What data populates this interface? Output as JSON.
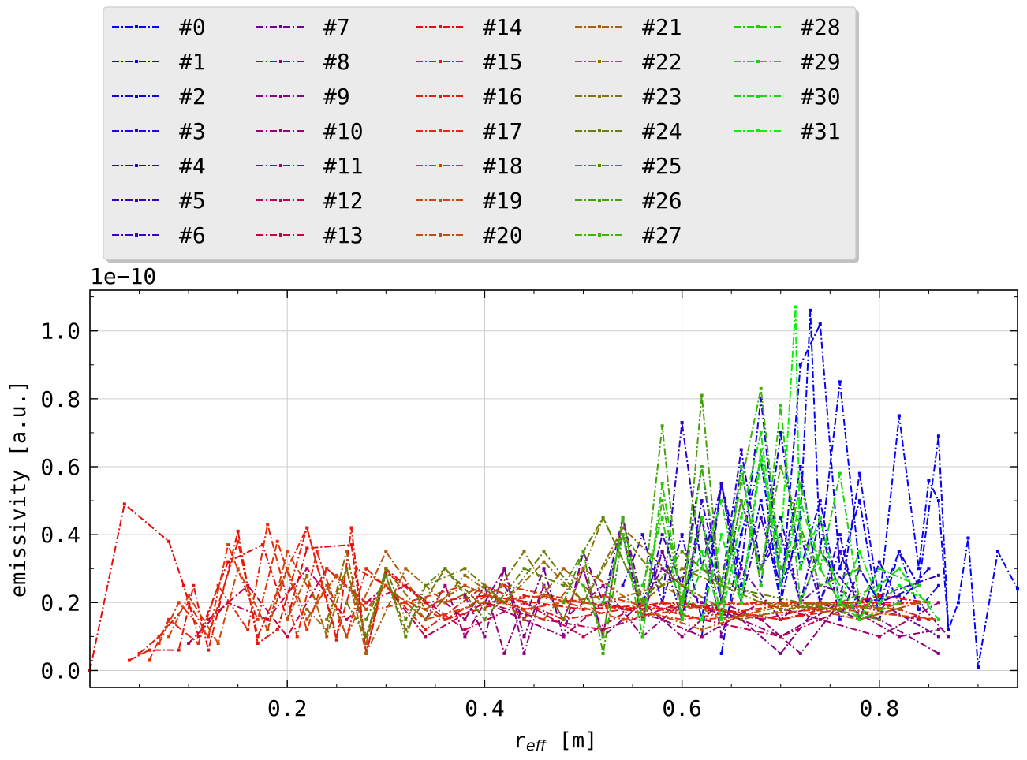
{
  "chart_data": {
    "type": "line",
    "xlabel_main": "r",
    "xlabel_sub": "eff",
    "xlabel_unit": " [m]",
    "ylabel": "emissivity [a.u.]",
    "y_offset_text": "1e−10",
    "y_scale_factor": 1e-10,
    "xlim": [
      0.0,
      0.94
    ],
    "ylim": [
      -0.05,
      1.12
    ],
    "x_ticks": [
      0.2,
      0.4,
      0.6,
      0.8
    ],
    "x_tick_labels": [
      "0.2",
      "0.4",
      "0.6",
      "0.8"
    ],
    "y_ticks": [
      0.0,
      0.2,
      0.4,
      0.6,
      0.8,
      1.0
    ],
    "y_tick_labels": [
      "0.0",
      "0.2",
      "0.4",
      "0.6",
      "0.8",
      "1.0"
    ],
    "grid": true,
    "legend_placement": "top, outside plot, 5 columns",
    "line_style": "dash-dot with small markers",
    "series": [
      {
        "name": "#0",
        "color": "#0000ff",
        "x": [
          0.64,
          0.66,
          0.68,
          0.7,
          0.72,
          0.73,
          0.74,
          0.76,
          0.78,
          0.8,
          0.82,
          0.84,
          0.85,
          0.86,
          0.87,
          0.88,
          0.89,
          0.9,
          0.92,
          0.94
        ],
        "y": [
          0.05,
          0.4,
          0.62,
          0.2,
          0.45,
          1.06,
          0.35,
          0.85,
          0.3,
          0.2,
          0.75,
          0.3,
          0.56,
          0.5,
          0.12,
          0.2,
          0.39,
          0.01,
          0.35,
          0.24
        ]
      },
      {
        "name": "#1",
        "color": "#0a00f5",
        "x": [
          0.62,
          0.64,
          0.66,
          0.68,
          0.7,
          0.72,
          0.74,
          0.76,
          0.78,
          0.8,
          0.82,
          0.84,
          0.86,
          0.87
        ],
        "y": [
          0.1,
          0.55,
          0.25,
          0.5,
          0.2,
          0.9,
          1.02,
          0.3,
          0.5,
          0.15,
          0.35,
          0.25,
          0.69,
          0.12
        ]
      },
      {
        "name": "#2",
        "color": "#1400eb",
        "x": [
          0.6,
          0.62,
          0.64,
          0.66,
          0.68,
          0.7,
          0.72,
          0.74,
          0.76,
          0.78,
          0.8,
          0.82,
          0.84,
          0.86
        ],
        "y": [
          0.15,
          0.45,
          0.2,
          0.6,
          0.25,
          0.7,
          0.3,
          0.5,
          0.2,
          0.58,
          0.2,
          0.35,
          0.18,
          0.25
        ]
      },
      {
        "name": "#3",
        "color": "#1e00e1",
        "x": [
          0.58,
          0.6,
          0.62,
          0.64,
          0.66,
          0.68,
          0.7,
          0.72,
          0.74,
          0.76,
          0.78,
          0.8,
          0.82,
          0.85
        ],
        "y": [
          0.2,
          0.4,
          0.15,
          0.55,
          0.3,
          0.8,
          0.25,
          0.6,
          0.2,
          0.4,
          0.15,
          0.32,
          0.2,
          0.3
        ]
      },
      {
        "name": "#4",
        "color": "#2800d7",
        "x": [
          0.56,
          0.58,
          0.6,
          0.62,
          0.64,
          0.66,
          0.68,
          0.7,
          0.72,
          0.74,
          0.76,
          0.78,
          0.8,
          0.84
        ],
        "y": [
          0.2,
          0.35,
          0.15,
          0.5,
          0.25,
          0.65,
          0.3,
          0.4,
          0.2,
          0.45,
          0.15,
          0.3,
          0.2,
          0.25
        ]
      },
      {
        "name": "#5",
        "color": "#3200cd",
        "x": [
          0.54,
          0.56,
          0.58,
          0.6,
          0.62,
          0.64,
          0.66,
          0.68,
          0.7,
          0.72,
          0.74,
          0.76,
          0.78,
          0.82
        ],
        "y": [
          0.25,
          0.4,
          0.2,
          0.73,
          0.3,
          0.55,
          0.2,
          0.45,
          0.25,
          0.4,
          0.2,
          0.35,
          0.2,
          0.22
        ]
      },
      {
        "name": "#6",
        "color": "#3c00c3",
        "x": [
          0.52,
          0.54,
          0.56,
          0.58,
          0.6,
          0.62,
          0.64,
          0.66,
          0.68,
          0.7,
          0.72,
          0.74,
          0.78,
          0.86
        ],
        "y": [
          0.2,
          0.45,
          0.15,
          0.4,
          0.25,
          0.6,
          0.2,
          0.5,
          0.3,
          0.45,
          0.2,
          0.35,
          0.2,
          0.28
        ]
      },
      {
        "name": "#7",
        "color": "#6e0096",
        "x": [
          0.42,
          0.44,
          0.46,
          0.48,
          0.5,
          0.52,
          0.54,
          0.56,
          0.58,
          0.6,
          0.62,
          0.64,
          0.66,
          0.7,
          0.74,
          0.8,
          0.86
        ],
        "y": [
          0.25,
          0.15,
          0.3,
          0.1,
          0.35,
          0.2,
          0.4,
          0.15,
          0.35,
          0.2,
          0.45,
          0.1,
          0.3,
          0.15,
          0.25,
          0.2,
          0.1
        ]
      },
      {
        "name": "#8",
        "color": "#82008c",
        "x": [
          0.4,
          0.42,
          0.44,
          0.46,
          0.48,
          0.5,
          0.52,
          0.54,
          0.56,
          0.58,
          0.62,
          0.66,
          0.7,
          0.74,
          0.78,
          0.84,
          0.87
        ],
        "y": [
          0.2,
          0.3,
          0.1,
          0.25,
          0.15,
          0.3,
          0.1,
          0.45,
          0.2,
          0.3,
          0.2,
          0.15,
          0.05,
          0.2,
          0.15,
          0.2,
          0.1
        ]
      },
      {
        "name": "#9",
        "color": "#8c0082",
        "x": [
          0.38,
          0.4,
          0.42,
          0.44,
          0.46,
          0.48,
          0.5,
          0.52,
          0.56,
          0.6,
          0.64,
          0.68,
          0.72,
          0.76,
          0.8,
          0.86
        ],
        "y": [
          0.22,
          0.1,
          0.3,
          0.05,
          0.25,
          0.15,
          0.3,
          0.1,
          0.2,
          0.1,
          0.2,
          0.15,
          0.05,
          0.2,
          0.15,
          0.05
        ]
      },
      {
        "name": "#10",
        "color": "#960078",
        "x": [
          0.36,
          0.38,
          0.4,
          0.42,
          0.44,
          0.48,
          0.52,
          0.56,
          0.6,
          0.66,
          0.7,
          0.76,
          0.82,
          0.86
        ],
        "y": [
          0.2,
          0.15,
          0.25,
          0.05,
          0.2,
          0.15,
          0.25,
          0.1,
          0.2,
          0.15,
          0.1,
          0.2,
          0.1,
          0.12
        ]
      },
      {
        "name": "#11",
        "color": "#a0006e",
        "x": [
          0.34,
          0.36,
          0.38,
          0.4,
          0.44,
          0.48,
          0.52,
          0.58,
          0.62,
          0.68,
          0.74,
          0.8,
          0.86
        ],
        "y": [
          0.15,
          0.25,
          0.1,
          0.2,
          0.15,
          0.1,
          0.2,
          0.15,
          0.1,
          0.2,
          0.15,
          0.1,
          0.2
        ]
      },
      {
        "name": "#12",
        "color": "#be0050",
        "x": [
          0.1,
          0.14,
          0.18,
          0.22,
          0.26,
          0.3,
          0.34,
          0.4,
          0.46,
          0.52,
          0.6,
          0.68,
          0.76,
          0.84
        ],
        "y": [
          0.08,
          0.2,
          0.15,
          0.3,
          0.15,
          0.25,
          0.1,
          0.2,
          0.15,
          0.12,
          0.2,
          0.15,
          0.2,
          0.15
        ]
      },
      {
        "name": "#13",
        "color": "#c80046",
        "x": [
          0.12,
          0.16,
          0.2,
          0.24,
          0.28,
          0.32,
          0.38,
          0.44,
          0.5,
          0.56,
          0.62,
          0.7,
          0.78,
          0.85
        ],
        "y": [
          0.15,
          0.25,
          0.1,
          0.3,
          0.2,
          0.25,
          0.12,
          0.2,
          0.1,
          0.2,
          0.15,
          0.1,
          0.2,
          0.2
        ]
      },
      {
        "name": "#14",
        "color": "#e60a0a",
        "x": [
          0.0,
          0.035,
          0.08,
          0.095,
          0.11,
          0.14,
          0.175,
          0.2,
          0.22,
          0.265,
          0.28,
          0.3,
          0.34,
          0.4,
          0.5,
          0.6,
          0.7,
          0.8,
          0.85
        ],
        "y": [
          0.0,
          0.49,
          0.38,
          0.25,
          0.1,
          0.32,
          0.37,
          0.15,
          0.36,
          0.37,
          0.05,
          0.29,
          0.2,
          0.22,
          0.18,
          0.2,
          0.15,
          0.22,
          0.2
        ]
      },
      {
        "name": "#15",
        "color": "#e6140a",
        "x": [
          0.04,
          0.06,
          0.09,
          0.105,
          0.12,
          0.15,
          0.17,
          0.19,
          0.22,
          0.25,
          0.265,
          0.28,
          0.3,
          0.36,
          0.44,
          0.56,
          0.68,
          0.8,
          0.85
        ],
        "y": [
          0.03,
          0.06,
          0.06,
          0.25,
          0.06,
          0.41,
          0.08,
          0.12,
          0.42,
          0.09,
          0.42,
          0.05,
          0.3,
          0.15,
          0.22,
          0.18,
          0.2,
          0.2,
          0.15
        ]
      },
      {
        "name": "#16",
        "color": "#e61e0a",
        "x": [
          0.05,
          0.07,
          0.1,
          0.12,
          0.15,
          0.17,
          0.2,
          0.22,
          0.25,
          0.27,
          0.3,
          0.34,
          0.4,
          0.48,
          0.58,
          0.7,
          0.8
        ],
        "y": [
          0.05,
          0.1,
          0.2,
          0.1,
          0.38,
          0.1,
          0.3,
          0.42,
          0.1,
          0.3,
          0.25,
          0.12,
          0.25,
          0.15,
          0.2,
          0.15,
          0.2
        ]
      },
      {
        "name": "#17",
        "color": "#e6280a",
        "x": [
          0.06,
          0.08,
          0.11,
          0.13,
          0.16,
          0.18,
          0.21,
          0.23,
          0.26,
          0.28,
          0.31,
          0.36,
          0.42,
          0.5,
          0.6,
          0.72,
          0.82
        ],
        "y": [
          0.03,
          0.15,
          0.08,
          0.25,
          0.12,
          0.43,
          0.1,
          0.35,
          0.1,
          0.3,
          0.22,
          0.15,
          0.25,
          0.2,
          0.15,
          0.2,
          0.18
        ]
      },
      {
        "name": "#18",
        "color": "#e6320a",
        "x": [
          0.07,
          0.09,
          0.12,
          0.14,
          0.17,
          0.19,
          0.22,
          0.24,
          0.27,
          0.29,
          0.32,
          0.38,
          0.44,
          0.52,
          0.62,
          0.74,
          0.84
        ],
        "y": [
          0.08,
          0.2,
          0.1,
          0.37,
          0.15,
          0.38,
          0.12,
          0.3,
          0.22,
          0.18,
          0.2,
          0.25,
          0.18,
          0.22,
          0.15,
          0.18,
          0.2
        ]
      },
      {
        "name": "#19",
        "color": "#d2460a",
        "x": [
          0.08,
          0.1,
          0.13,
          0.15,
          0.18,
          0.2,
          0.23,
          0.25,
          0.28,
          0.3,
          0.34,
          0.4,
          0.46,
          0.54,
          0.64,
          0.76,
          0.86
        ],
        "y": [
          0.1,
          0.22,
          0.08,
          0.3,
          0.12,
          0.35,
          0.2,
          0.28,
          0.18,
          0.25,
          0.15,
          0.2,
          0.22,
          0.15,
          0.2,
          0.18,
          0.15
        ]
      },
      {
        "name": "#20",
        "color": "#be500a",
        "x": [
          0.18,
          0.2,
          0.22,
          0.24,
          0.26,
          0.3,
          0.34,
          0.38,
          0.42,
          0.46,
          0.5,
          0.56,
          0.62,
          0.7,
          0.78,
          0.84
        ],
        "y": [
          0.12,
          0.3,
          0.15,
          0.25,
          0.1,
          0.35,
          0.18,
          0.25,
          0.2,
          0.15,
          0.3,
          0.18,
          0.12,
          0.2,
          0.15,
          0.2
        ]
      },
      {
        "name": "#21",
        "color": "#aa5f0a",
        "x": [
          0.2,
          0.22,
          0.24,
          0.26,
          0.28,
          0.32,
          0.36,
          0.4,
          0.44,
          0.48,
          0.52,
          0.58,
          0.64,
          0.72,
          0.8
        ],
        "y": [
          0.15,
          0.28,
          0.1,
          0.3,
          0.05,
          0.3,
          0.2,
          0.25,
          0.15,
          0.3,
          0.2,
          0.25,
          0.15,
          0.2,
          0.18
        ]
      },
      {
        "name": "#22",
        "color": "#96690a",
        "x": [
          0.22,
          0.24,
          0.26,
          0.28,
          0.3,
          0.34,
          0.38,
          0.42,
          0.46,
          0.5,
          0.54,
          0.6,
          0.66,
          0.74,
          0.82
        ],
        "y": [
          0.18,
          0.12,
          0.35,
          0.08,
          0.3,
          0.15,
          0.28,
          0.2,
          0.32,
          0.2,
          0.42,
          0.25,
          0.15,
          0.2,
          0.18
        ]
      },
      {
        "name": "#23",
        "color": "#82730a",
        "x": [
          0.24,
          0.26,
          0.28,
          0.3,
          0.32,
          0.36,
          0.4,
          0.44,
          0.48,
          0.52,
          0.56,
          0.6,
          0.68,
          0.76
        ],
        "y": [
          0.15,
          0.3,
          0.1,
          0.28,
          0.12,
          0.3,
          0.18,
          0.35,
          0.15,
          0.45,
          0.2,
          0.3,
          0.2,
          0.18
        ]
      },
      {
        "name": "#24",
        "color": "#6e7d0a",
        "x": [
          0.26,
          0.28,
          0.3,
          0.32,
          0.34,
          0.38,
          0.42,
          0.46,
          0.5,
          0.54,
          0.58,
          0.62,
          0.7,
          0.78
        ],
        "y": [
          0.2,
          0.1,
          0.3,
          0.15,
          0.25,
          0.3,
          0.2,
          0.35,
          0.2,
          0.4,
          0.25,
          0.3,
          0.18,
          0.2
        ]
      },
      {
        "name": "#25",
        "color": "#5a870a",
        "x": [
          0.28,
          0.3,
          0.32,
          0.34,
          0.36,
          0.4,
          0.44,
          0.48,
          0.52,
          0.56,
          0.6,
          0.64,
          0.72,
          0.8
        ],
        "y": [
          0.15,
          0.28,
          0.1,
          0.25,
          0.3,
          0.15,
          0.3,
          0.25,
          0.45,
          0.2,
          0.35,
          0.25,
          0.2,
          0.15
        ]
      },
      {
        "name": "#26",
        "color": "#46a00a",
        "x": [
          0.48,
          0.5,
          0.52,
          0.54,
          0.56,
          0.58,
          0.6,
          0.62,
          0.64,
          0.66,
          0.68,
          0.7,
          0.74,
          0.78
        ],
        "y": [
          0.2,
          0.35,
          0.05,
          0.4,
          0.2,
          0.72,
          0.15,
          0.81,
          0.2,
          0.5,
          0.3,
          0.6,
          0.25,
          0.3
        ]
      },
      {
        "name": "#27",
        "color": "#3cb40a",
        "x": [
          0.5,
          0.52,
          0.54,
          0.56,
          0.58,
          0.6,
          0.62,
          0.64,
          0.66,
          0.68,
          0.7,
          0.72,
          0.76,
          0.8
        ],
        "y": [
          0.25,
          0.1,
          0.45,
          0.15,
          0.5,
          0.2,
          0.6,
          0.25,
          0.55,
          0.83,
          0.3,
          0.4,
          0.2,
          0.25
        ]
      },
      {
        "name": "#28",
        "color": "#28c80a",
        "x": [
          0.52,
          0.54,
          0.56,
          0.58,
          0.6,
          0.62,
          0.64,
          0.66,
          0.68,
          0.7,
          0.72,
          0.74,
          0.78,
          0.82
        ],
        "y": [
          0.2,
          0.4,
          0.1,
          0.55,
          0.2,
          0.45,
          0.15,
          0.6,
          0.25,
          0.78,
          0.2,
          0.35,
          0.15,
          0.2
        ]
      },
      {
        "name": "#29",
        "color": "#1ed20a",
        "x": [
          0.56,
          0.58,
          0.6,
          0.62,
          0.64,
          0.66,
          0.68,
          0.7,
          0.72,
          0.74,
          0.76,
          0.78,
          0.8,
          0.84
        ],
        "y": [
          0.25,
          0.45,
          0.15,
          0.3,
          0.5,
          0.2,
          0.65,
          0.25,
          0.55,
          0.3,
          0.58,
          0.2,
          0.3,
          0.25
        ]
      },
      {
        "name": "#30",
        "color": "#14dc0a",
        "x": [
          0.6,
          0.62,
          0.64,
          0.66,
          0.68,
          0.7,
          0.72,
          0.74,
          0.76,
          0.78,
          0.8,
          0.82,
          0.86
        ],
        "y": [
          0.2,
          0.35,
          0.15,
          0.45,
          0.7,
          0.25,
          0.5,
          0.3,
          0.2,
          0.15,
          0.25,
          0.3,
          0.15
        ]
      },
      {
        "name": "#31",
        "color": "#0af00a",
        "x": [
          0.62,
          0.64,
          0.66,
          0.68,
          0.7,
          0.715,
          0.72,
          0.74,
          0.76,
          0.78,
          0.8,
          0.82,
          0.85
        ],
        "y": [
          0.15,
          0.4,
          0.2,
          0.62,
          0.35,
          1.07,
          0.3,
          0.45,
          0.2,
          0.35,
          0.2,
          0.25,
          0.2
        ]
      }
    ]
  }
}
